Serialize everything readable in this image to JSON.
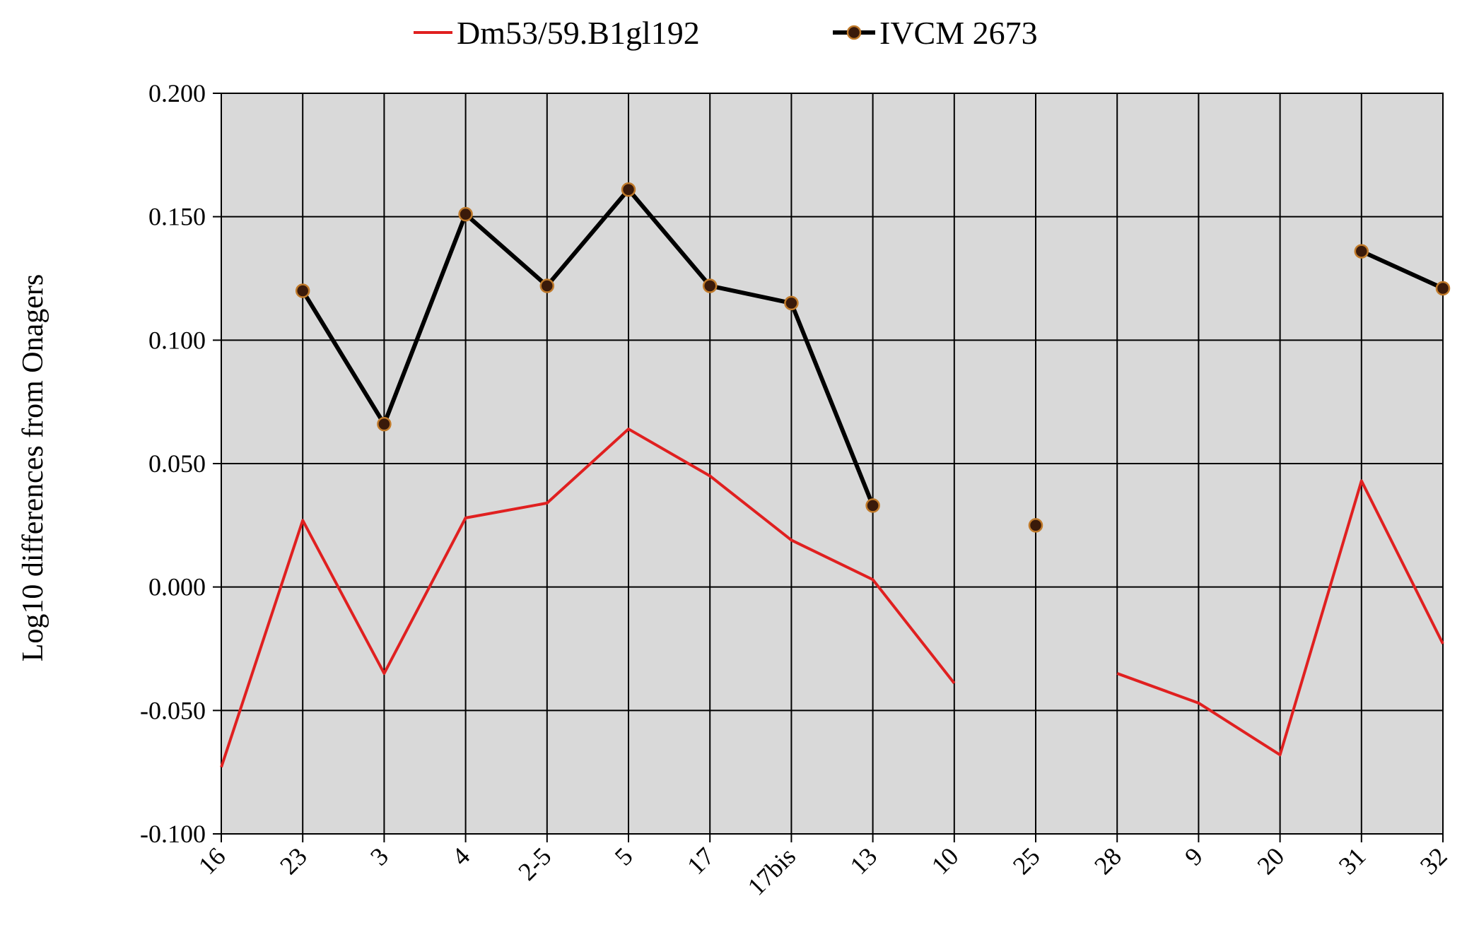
{
  "chart_data": {
    "type": "line",
    "title": "",
    "xlabel": "",
    "ylabel": "Log10 differences from Onagers",
    "ylim": [
      -0.1,
      0.2
    ],
    "yticks": [
      "0.200",
      "0.150",
      "0.100",
      "0.050",
      "0.000",
      "-0.050",
      "-0.100"
    ],
    "grid": true,
    "legend_position": "top-center",
    "categories": [
      "16",
      "23",
      "3",
      "4",
      "2-5",
      "5",
      "17",
      "17bis",
      "13",
      "10",
      "25",
      "28",
      "9",
      "20",
      "31",
      "32"
    ],
    "series": [
      {
        "name": "Dm53/59.B1gl192",
        "color": "#e02020",
        "marker": "none",
        "values": [
          -0.073,
          0.027,
          -0.035,
          0.028,
          0.034,
          0.064,
          0.045,
          0.019,
          0.003,
          -0.039,
          null,
          -0.035,
          -0.047,
          -0.068,
          0.043,
          -0.023
        ]
      },
      {
        "name": "IVCM 2673",
        "color": "#000000",
        "marker": "circle",
        "marker_fill": "#3a1a0a",
        "marker_edge": "#c07a2a",
        "values": [
          null,
          0.12,
          0.066,
          0.151,
          0.122,
          0.161,
          0.122,
          0.115,
          0.033,
          null,
          0.025,
          null,
          null,
          null,
          0.136,
          0.121
        ]
      }
    ]
  }
}
